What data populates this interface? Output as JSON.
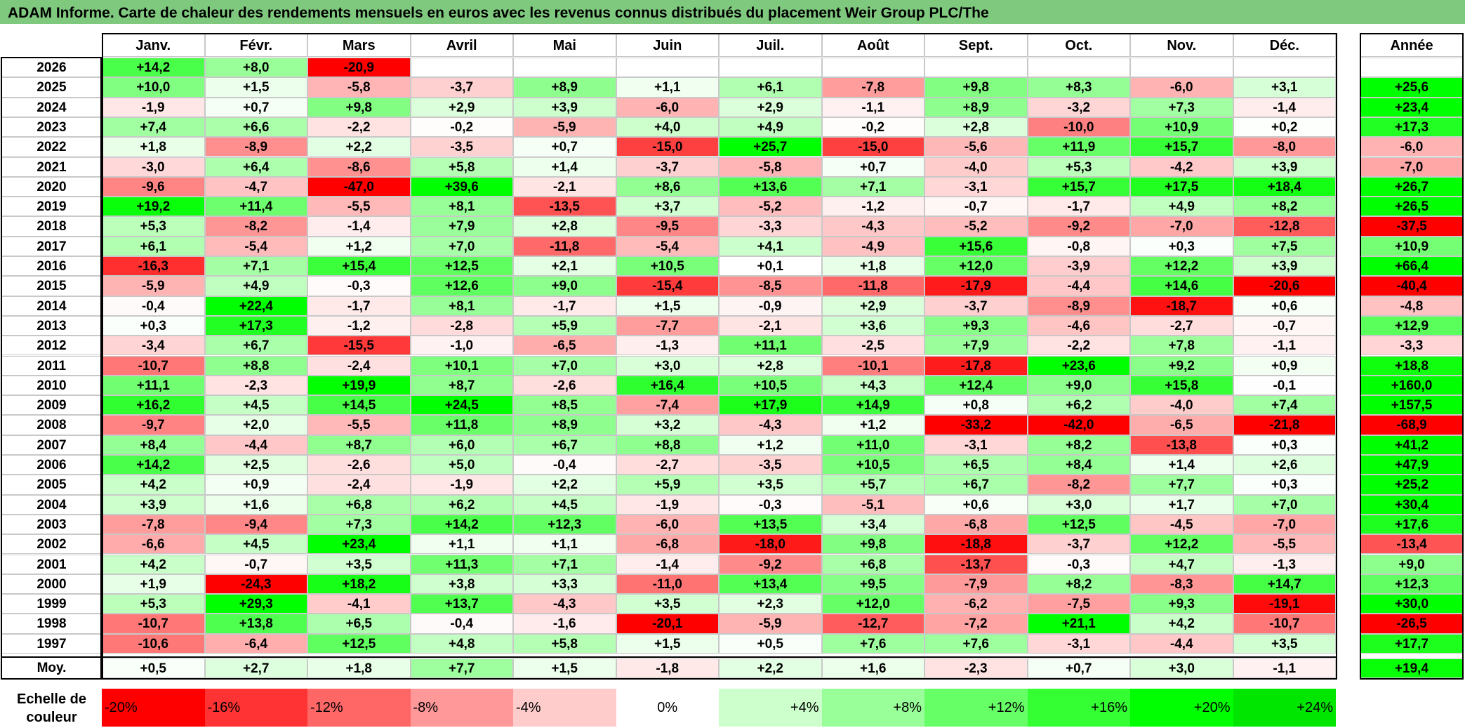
{
  "title": "ADAM Informe. Carte de chaleur des rendements mensuels en euros avec les revenus connus distribués du placement Weir Group PLC/The",
  "chart_data": {
    "type": "heatmap",
    "title": "ADAM Informe. Carte de chaleur des rendements mensuels en euros avec les revenus connus distribués du placement Weir Group PLC/The",
    "months": [
      "Janv.",
      "Févr.",
      "Mars",
      "Avril",
      "Mai",
      "Juin",
      "Juil.",
      "Août",
      "Sept.",
      "Oct.",
      "Nov.",
      "Déc."
    ],
    "annual_header": "Année",
    "rows": [
      {
        "year": "2026",
        "values": [
          "+14,2",
          "+8,0",
          "-20,9",
          "",
          "",
          "",
          "",
          "",
          "",
          "",
          "",
          ""
        ],
        "annual": ""
      },
      {
        "year": "2025",
        "values": [
          "+10,0",
          "+1,5",
          "-5,8",
          "-3,7",
          "+8,9",
          "+1,1",
          "+6,1",
          "-7,8",
          "+9,8",
          "+8,3",
          "-6,0",
          "+3,1"
        ],
        "annual": "+25,6"
      },
      {
        "year": "2024",
        "values": [
          "-1,9",
          "+0,7",
          "+9,8",
          "+2,9",
          "+3,9",
          "-6,0",
          "+2,9",
          "-1,1",
          "+8,9",
          "-3,2",
          "+7,3",
          "-1,4"
        ],
        "annual": "+23,4"
      },
      {
        "year": "2023",
        "values": [
          "+7,4",
          "+6,6",
          "-2,2",
          "-0,2",
          "-5,9",
          "+4,0",
          "+4,9",
          "-0,2",
          "+2,8",
          "-10,0",
          "+10,9",
          "+0,2"
        ],
        "annual": "+17,3"
      },
      {
        "year": "2022",
        "values": [
          "+1,8",
          "-8,9",
          "+2,2",
          "-3,5",
          "+0,7",
          "-15,0",
          "+25,7",
          "-15,0",
          "-5,6",
          "+11,9",
          "+15,7",
          "-8,0"
        ],
        "annual": "-6,0"
      },
      {
        "year": "2021",
        "values": [
          "-3,0",
          "+6,4",
          "-8,6",
          "+5,8",
          "+1,4",
          "-3,7",
          "-5,8",
          "+0,7",
          "-4,0",
          "+5,3",
          "-4,2",
          "+3,9"
        ],
        "annual": "-7,0"
      },
      {
        "year": "2020",
        "values": [
          "-9,6",
          "-4,7",
          "-47,0",
          "+39,6",
          "-2,1",
          "+8,6",
          "+13,6",
          "+7,1",
          "-3,1",
          "+15,7",
          "+17,5",
          "+18,4"
        ],
        "annual": "+26,7"
      },
      {
        "year": "2019",
        "values": [
          "+19,2",
          "+11,4",
          "-5,5",
          "+8,1",
          "-13,5",
          "+3,7",
          "-5,2",
          "-1,2",
          "-0,7",
          "-1,7",
          "+4,9",
          "+8,2"
        ],
        "annual": "+26,5"
      },
      {
        "year": "2018",
        "values": [
          "+5,3",
          "-8,2",
          "-1,4",
          "+7,9",
          "+2,8",
          "-9,5",
          "-3,3",
          "-4,3",
          "-5,2",
          "-9,2",
          "-7,0",
          "-12,8"
        ],
        "annual": "-37,5"
      },
      {
        "year": "2017",
        "values": [
          "+6,1",
          "-5,4",
          "+1,2",
          "+7,0",
          "-11,8",
          "-5,4",
          "+4,1",
          "-4,9",
          "+15,6",
          "-0,8",
          "+0,3",
          "+7,5"
        ],
        "annual": "+10,9"
      },
      {
        "year": "2016",
        "values": [
          "-16,3",
          "+7,1",
          "+15,4",
          "+12,5",
          "+2,1",
          "+10,5",
          "+0,1",
          "+1,8",
          "+12,0",
          "-3,9",
          "+12,2",
          "+3,9"
        ],
        "annual": "+66,4"
      },
      {
        "year": "2015",
        "values": [
          "-5,9",
          "+4,9",
          "-0,3",
          "+12,6",
          "+9,0",
          "-15,4",
          "-8,5",
          "-11,8",
          "-17,9",
          "-4,4",
          "+14,6",
          "-20,6"
        ],
        "annual": "-40,4"
      },
      {
        "year": "2014",
        "values": [
          "-0,4",
          "+22,4",
          "-1,7",
          "+8,1",
          "-1,7",
          "+1,5",
          "-0,9",
          "+2,9",
          "-3,7",
          "-8,9",
          "-18,7",
          "+0,6"
        ],
        "annual": "-4,8"
      },
      {
        "year": "2013",
        "values": [
          "+0,3",
          "+17,3",
          "-1,2",
          "-2,8",
          "+5,9",
          "-7,7",
          "-2,1",
          "+3,6",
          "+9,3",
          "-4,6",
          "-2,7",
          "-0,7"
        ],
        "annual": "+12,9"
      },
      {
        "year": "2012",
        "values": [
          "-3,4",
          "+6,7",
          "-15,5",
          "-1,0",
          "-6,5",
          "-1,3",
          "+11,1",
          "-2,5",
          "+7,9",
          "-2,2",
          "+7,8",
          "-1,1"
        ],
        "annual": "-3,3"
      },
      {
        "year": "2011",
        "values": [
          "-10,7",
          "+8,8",
          "-2,4",
          "+10,1",
          "+7,0",
          "+3,0",
          "+2,8",
          "-10,1",
          "-17,8",
          "+23,6",
          "+9,2",
          "+0,9"
        ],
        "annual": "+18,8"
      },
      {
        "year": "2010",
        "values": [
          "+11,1",
          "-2,3",
          "+19,9",
          "+8,7",
          "-2,6",
          "+16,4",
          "+10,5",
          "+4,3",
          "+12,4",
          "+9,0",
          "+15,8",
          "-0,1"
        ],
        "annual": "+160,0"
      },
      {
        "year": "2009",
        "values": [
          "+16,2",
          "+4,5",
          "+14,5",
          "+24,5",
          "+8,5",
          "-7,4",
          "+17,9",
          "+14,9",
          "+0,8",
          "+6,2",
          "-4,0",
          "+7,4"
        ],
        "annual": "+157,5"
      },
      {
        "year": "2008",
        "values": [
          "-9,7",
          "+2,0",
          "-5,5",
          "+11,8",
          "+8,9",
          "+3,2",
          "-4,3",
          "+1,2",
          "-33,2",
          "-42,0",
          "-6,5",
          "-21,8"
        ],
        "annual": "-68,9"
      },
      {
        "year": "2007",
        "values": [
          "+8,4",
          "-4,4",
          "+8,7",
          "+6,0",
          "+6,7",
          "+8,8",
          "+1,2",
          "+11,0",
          "-3,1",
          "+8,2",
          "-13,8",
          "+0,3"
        ],
        "annual": "+41,2"
      },
      {
        "year": "2006",
        "values": [
          "+14,2",
          "+2,5",
          "-2,6",
          "+5,0",
          "-0,4",
          "-2,7",
          "-3,5",
          "+10,5",
          "+6,5",
          "+8,4",
          "+1,4",
          "+2,6"
        ],
        "annual": "+47,9"
      },
      {
        "year": "2005",
        "values": [
          "+4,2",
          "+0,9",
          "-2,4",
          "-1,9",
          "+2,2",
          "+5,9",
          "+3,5",
          "+5,7",
          "+6,7",
          "-8,2",
          "+7,7",
          "+0,3"
        ],
        "annual": "+25,2"
      },
      {
        "year": "2004",
        "values": [
          "+3,9",
          "+1,6",
          "+6,8",
          "+6,2",
          "+4,5",
          "-1,9",
          "-0,3",
          "-5,1",
          "+0,6",
          "+3,0",
          "+1,7",
          "+7,0"
        ],
        "annual": "+30,4"
      },
      {
        "year": "2003",
        "values": [
          "-7,8",
          "-9,4",
          "+7,3",
          "+14,2",
          "+12,3",
          "-6,0",
          "+13,5",
          "+3,4",
          "-6,8",
          "+12,5",
          "-4,5",
          "-7,0"
        ],
        "annual": "+17,6"
      },
      {
        "year": "2002",
        "values": [
          "-6,6",
          "+4,5",
          "+23,4",
          "+1,1",
          "+1,1",
          "-6,8",
          "-18,0",
          "+9,8",
          "-18,8",
          "-3,7",
          "+12,2",
          "-5,5"
        ],
        "annual": "-13,4"
      },
      {
        "year": "2001",
        "values": [
          "+4,2",
          "-0,7",
          "+3,5",
          "+11,3",
          "+7,1",
          "-1,4",
          "-9,2",
          "+6,8",
          "-13,7",
          "-0,3",
          "+4,7",
          "-1,3"
        ],
        "annual": "+9,0"
      },
      {
        "year": "2000",
        "values": [
          "+1,9",
          "-24,3",
          "+18,2",
          "+3,8",
          "+3,3",
          "-11,0",
          "+13,4",
          "+9,5",
          "-7,9",
          "+8,2",
          "-8,3",
          "+14,7"
        ],
        "annual": "+12,3"
      },
      {
        "year": "1999",
        "values": [
          "+5,3",
          "+29,3",
          "-4,1",
          "+13,7",
          "-4,3",
          "+3,5",
          "+2,3",
          "+12,0",
          "-6,2",
          "-7,5",
          "+9,3",
          "-19,1"
        ],
        "annual": "+30,0"
      },
      {
        "year": "1998",
        "values": [
          "-10,7",
          "+13,8",
          "+6,5",
          "-0,4",
          "-1,6",
          "-20,1",
          "-5,9",
          "-12,7",
          "-7,2",
          "+21,1",
          "+4,2",
          "-10,7"
        ],
        "annual": "-26,5"
      },
      {
        "year": "1997",
        "values": [
          "-10,6",
          "-6,4",
          "+12,5",
          "+4,8",
          "+5,8",
          "+1,5",
          "+0,5",
          "+7,6",
          "+7,6",
          "-3,1",
          "-4,4",
          "+3,5"
        ],
        "annual": "+17,7"
      }
    ],
    "average": {
      "label": "Moy.",
      "values": [
        "+0,5",
        "+2,7",
        "+1,8",
        "+7,7",
        "+1,5",
        "-1,8",
        "+2,2",
        "+1,6",
        "-2,3",
        "+0,7",
        "+3,0",
        "-1,1"
      ],
      "annual": "+19,4"
    },
    "scale": {
      "label_line1": "Echelle de",
      "label_line2": "couleur",
      "items": [
        {
          "text": "-20%",
          "value": -20,
          "color": "#ff0000"
        },
        {
          "text": "-16%",
          "value": -16,
          "color": "#ff3333"
        },
        {
          "text": "-12%",
          "value": -12,
          "color": "#ff6666"
        },
        {
          "text": "-8%",
          "value": -8,
          "color": "#ff9999"
        },
        {
          "text": "-4%",
          "value": -4,
          "color": "#ffcccc"
        },
        {
          "text": "0%",
          "value": 0,
          "color": "#ffffff"
        },
        {
          "text": "+4%",
          "value": 4,
          "color": "#ccffcc"
        },
        {
          "text": "+8%",
          "value": 8,
          "color": "#99ff99"
        },
        {
          "text": "+12%",
          "value": 12,
          "color": "#66ff66"
        },
        {
          "text": "+16%",
          "value": 16,
          "color": "#33ff33"
        },
        {
          "text": "+20%",
          "value": 20,
          "color": "#00ff00"
        },
        {
          "text": "+24%",
          "value": 24,
          "color": "#00e600"
        }
      ]
    },
    "colors": {
      "negative_max": "#ff0000",
      "neutral": "#ffffff",
      "positive_max": "#00ff00",
      "title_bar": "#7fc97f"
    }
  }
}
